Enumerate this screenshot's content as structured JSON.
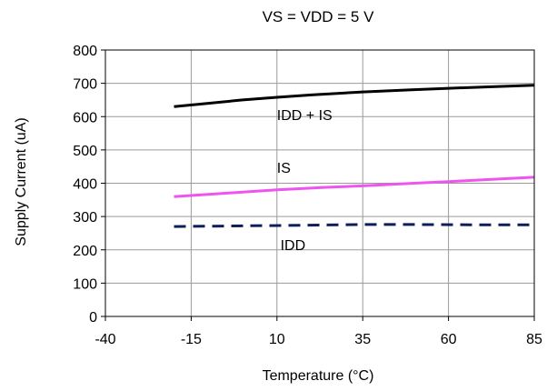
{
  "chart_data": {
    "type": "line",
    "title": "VS = VDD = 5 V",
    "xlabel": "Temperature (°C)",
    "ylabel": "Supply Current (uA)",
    "xlim": [
      -40,
      85
    ],
    "ylim": [
      0,
      800
    ],
    "xticks": [
      -40,
      -15,
      10,
      35,
      60,
      85
    ],
    "yticks": [
      0,
      100,
      200,
      300,
      400,
      500,
      600,
      700,
      800
    ],
    "grid": true,
    "series": [
      {
        "name": "IDD + IS",
        "color": "#000000",
        "style": "solid",
        "x": [
          -20,
          -10,
          0,
          10,
          20,
          35,
          50,
          60,
          70,
          85
        ],
        "y": [
          630,
          640,
          650,
          658,
          665,
          674,
          681,
          685,
          689,
          694
        ]
      },
      {
        "name": "IS",
        "color": "#ee55ee",
        "style": "solid",
        "x": [
          -20,
          -5,
          10,
          25,
          35,
          50,
          60,
          70,
          85
        ],
        "y": [
          360,
          370,
          380,
          388,
          392,
          400,
          405,
          410,
          418
        ]
      },
      {
        "name": "IDD",
        "color": "#0d1f5a",
        "style": "dashed",
        "x": [
          -20,
          0,
          20,
          35,
          50,
          70,
          85
        ],
        "y": [
          270,
          272,
          274,
          276,
          276,
          275,
          275
        ]
      }
    ],
    "annotations": [
      {
        "text": "IDD + IS",
        "x": 10,
        "y": 590
      },
      {
        "text": "IS",
        "x": 10,
        "y": 432
      },
      {
        "text": "IDD",
        "x": 11,
        "y": 200
      }
    ]
  }
}
